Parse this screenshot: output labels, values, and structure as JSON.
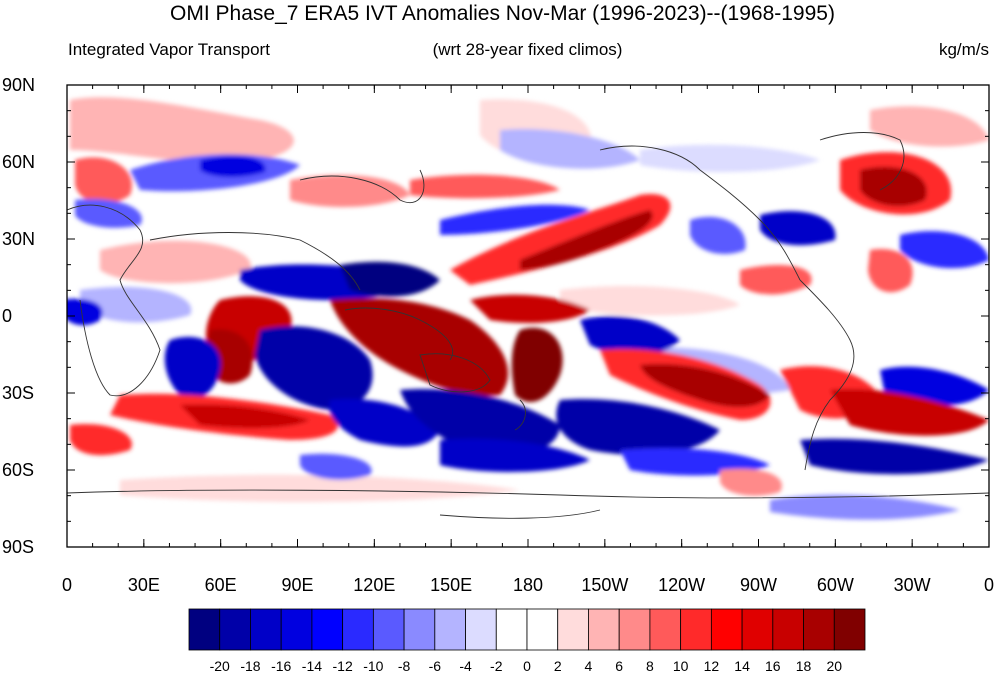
{
  "title": "OMI Phase_7 ERA5 IVT Anomalies Nov-Mar (1996-2023)--(1968-1995)",
  "subtitle_left": "Integrated Vapor Transport",
  "subtitle_center": "(wrt 28-year fixed climos)",
  "subtitle_right": "kg/m/s",
  "lat_ticks": [
    "90N",
    "60N",
    "30N",
    "0",
    "30S",
    "60S",
    "90S"
  ],
  "lon_ticks": [
    "0",
    "30E",
    "60E",
    "90E",
    "120E",
    "150E",
    "180",
    "150W",
    "120W",
    "90W",
    "60W",
    "30W",
    "0"
  ],
  "colorbar": {
    "labels": [
      "-20",
      "-18",
      "-16",
      "-14",
      "-12",
      "-10",
      "-8",
      "-6",
      "-4",
      "-2",
      "0",
      "2",
      "4",
      "6",
      "8",
      "10",
      "12",
      "14",
      "16",
      "18",
      "20"
    ],
    "colors": [
      "#000080",
      "#0000a8",
      "#0000c8",
      "#0000e0",
      "#0000ff",
      "#2a2aff",
      "#5a5aff",
      "#8a8aff",
      "#b4b4ff",
      "#dcdcff",
      "#ffffff",
      "#ffffff",
      "#ffdcdc",
      "#ffb4b4",
      "#ff8a8a",
      "#ff5a5a",
      "#ff2a2a",
      "#ff0000",
      "#e00000",
      "#c80000",
      "#a80000",
      "#800000"
    ]
  }
}
